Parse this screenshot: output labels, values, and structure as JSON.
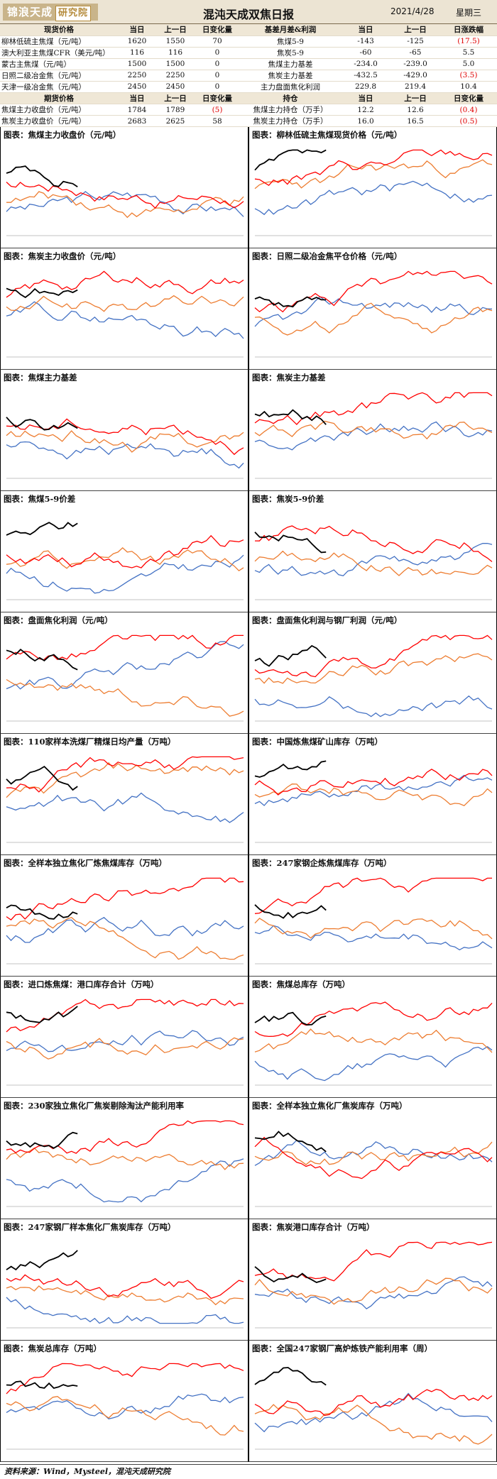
{
  "header": {
    "logo_main": "锦浪天成",
    "logo_sub": "研究院",
    "title": "混沌天成双焦日报",
    "date": "2021/4/28",
    "weekday": "星期三"
  },
  "table1": {
    "headers": [
      "现货价格",
      "当日",
      "上一日",
      "日变化量",
      "基差月差&利润",
      "当日",
      "上一日",
      "日涨跌幅"
    ],
    "rows": [
      {
        "l": "柳林低硫主焦煤（元/吨）",
        "a": "1620",
        "b": "1550",
        "d": "70",
        "m": "焦煤5-9",
        "p": "-143",
        "q": "-125",
        "z": "(17.5)",
        "zr": true
      },
      {
        "l": "澳大利亚主焦煤CFR（美元/吨）",
        "a": "116",
        "b": "116",
        "d": "0",
        "m": "焦炭5-9",
        "p": "-60",
        "q": "-65",
        "z": "5.5",
        "zr": false
      },
      {
        "l": "蒙古主焦煤（元/吨）",
        "a": "1500",
        "b": "1500",
        "d": "0",
        "m": "焦煤主力基差",
        "p": "-234.0",
        "q": "-239.0",
        "z": "5.0",
        "zr": false
      },
      {
        "l": "日照二级冶金焦（元/吨）",
        "a": "2250",
        "b": "2250",
        "d": "0",
        "m": "焦炭主力基差",
        "p": "-432.5",
        "q": "-429.0",
        "z": "(3.5)",
        "zr": true
      },
      {
        "l": "天津一级冶金焦（元/吨）",
        "a": "2450",
        "b": "2450",
        "d": "0",
        "m": "主力盘面焦化利润",
        "p": "229.8",
        "q": "219.4",
        "z": "10.4",
        "zr": false
      }
    ]
  },
  "table2": {
    "headers": [
      "期货价格",
      "当日",
      "上一日",
      "日变化量",
      "持仓",
      "当日",
      "上一日",
      "日变化量"
    ],
    "rows": [
      {
        "l": "焦煤主力收盘价（元/吨）",
        "a": "1784",
        "b": "1789",
        "d": "(5)",
        "dr": true,
        "m": "焦煤主力持仓（万手）",
        "p": "12.2",
        "q": "12.6",
        "z": "(0.4)",
        "zr": true
      },
      {
        "l": "焦炭主力收盘价（元/吨）",
        "a": "2683",
        "b": "2625",
        "d": "58",
        "dr": false,
        "m": "焦炭主力持仓（万手）",
        "p": "16.0",
        "q": "16.5",
        "z": "(0.5)",
        "zr": true
      }
    ]
  },
  "colors": {
    "s2018": "#4472c4",
    "s2019": "#ed7d31",
    "s2020": "#ff0000",
    "s2021": "#000000"
  },
  "charts": [
    {
      "title": "图表：焦煤主力收盘价（元/吨）"
    },
    {
      "title": "图表：柳林低硫主焦煤现货价格（元/吨）"
    },
    {
      "title": "图表：焦炭主力收盘价（元/吨）"
    },
    {
      "title": "图表：日照二级冶金焦平仓价格（元/吨）"
    },
    {
      "title": "图表：焦煤主力基差"
    },
    {
      "title": "图表：焦炭主力基差"
    },
    {
      "title": "图表：焦煤5-9价差"
    },
    {
      "title": "图表：焦炭5-9价差"
    },
    {
      "title": "图表：盘面焦化利润（元/吨）"
    },
    {
      "title": "图表：盘面焦化利润与钢厂利润（元/吨）"
    },
    {
      "title": "图表：110家样本洗煤厂精煤日均产量（万吨）"
    },
    {
      "title": "图表：中国炼焦煤矿山库存（万吨）"
    },
    {
      "title": "图表：全样本独立焦化厂炼焦煤库存（万吨）"
    },
    {
      "title": "图表：247家钢企炼焦煤库存（万吨）"
    },
    {
      "title": "图表：进口炼焦煤：港口库存合计（万吨）"
    },
    {
      "title": "图表：焦煤总库存（万吨）"
    },
    {
      "title": "图表：230家独立焦化厂焦炭剔除淘汰产能利用率"
    },
    {
      "title": "图表：全样本独立焦化厂焦炭库存（万吨）"
    },
    {
      "title": "图表：247家钢厂样本焦化厂焦炭库存（万吨）"
    },
    {
      "title": "图表：焦炭港口库存合计（万吨）"
    },
    {
      "title": "图表：焦炭总库存（万吨）"
    },
    {
      "title": "图表：全国247家钢厂高炉炼铁产能利用率（周）"
    }
  ],
  "source": "资料来源：Wind，Mysteel，混沌天成研究院"
}
